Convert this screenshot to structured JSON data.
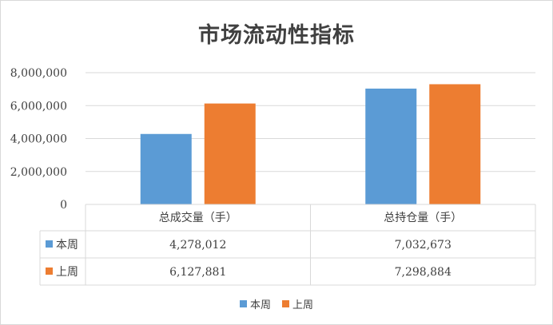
{
  "colors": {
    "this_week": "#5b9bd5",
    "last_week": "#ed7d31",
    "grid": "#d9d9d9",
    "text": "#404040"
  },
  "chart_data": {
    "type": "bar",
    "title": "市场流动性指标",
    "categories": [
      "总成交量（手）",
      "总持仓量（手）"
    ],
    "series": [
      {
        "name": "本周",
        "values": [
          4278012,
          7032673
        ],
        "labels": [
          "4,278,012",
          "7,032,673"
        ]
      },
      {
        "name": "上周",
        "values": [
          6127881,
          7298884
        ],
        "labels": [
          "6,127,881",
          "7,298,884"
        ]
      }
    ],
    "ylim": [
      0,
      8000000
    ],
    "yticks": [
      "0",
      "2,000,000",
      "4,000,000",
      "6,000,000",
      "8,000,000"
    ],
    "ytick_values": [
      0,
      2000000,
      4000000,
      6000000,
      8000000
    ],
    "grid": true,
    "data_table": true,
    "legend_position": "bottom"
  }
}
